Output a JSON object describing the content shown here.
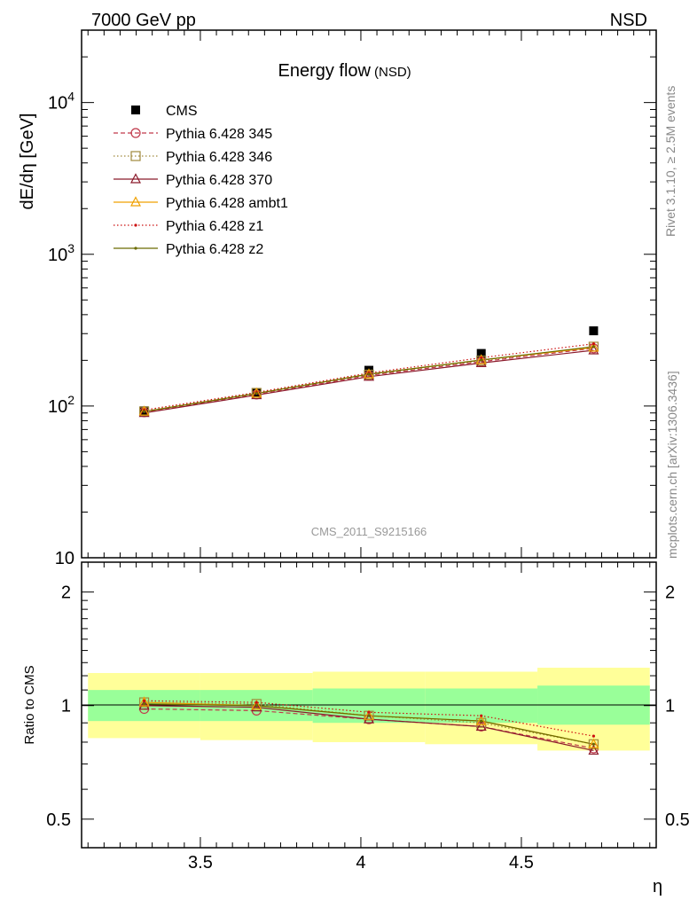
{
  "header": {
    "left": "7000 GeV pp",
    "right": "NSD"
  },
  "side_labels": {
    "rivet": "Rivet 3.1.10, ≥ 2.5M events",
    "mcplots": "mcplots.cern.ch [arXiv:1306.3436]"
  },
  "chart_data": [
    {
      "type": "scatter",
      "title": "Energy flow",
      "title_suffix": "(NSD)",
      "ylabel": "dE/dη [GeV]",
      "yscale": "log",
      "ylim": [
        10,
        30000
      ],
      "xlim": [
        3.13,
        4.92
      ],
      "y_ticks": [
        {
          "value": 10,
          "base": "10",
          "exp": ""
        },
        {
          "value": 100,
          "base": "10",
          "exp": "2"
        },
        {
          "value": 1000,
          "base": "10",
          "exp": "3"
        },
        {
          "value": 10000,
          "base": "10",
          "exp": "4"
        }
      ],
      "watermark": "CMS_2011_S9215166",
      "legend_position": "top-left",
      "x": [
        3.325,
        3.675,
        4.025,
        4.375,
        4.725
      ],
      "series": [
        {
          "name": "CMS",
          "color": "#000000",
          "marker": "filled-square",
          "line": "none",
          "values": [
            93,
            123,
            172,
            222,
            313
          ]
        },
        {
          "name": "Pythia 6.428 345",
          "color": "#c0394b",
          "marker": "open-circle",
          "line": "dashed",
          "values": [
            91,
            119,
            159,
            196,
            240
          ]
        },
        {
          "name": "Pythia 6.428 346",
          "color": "#a0893c",
          "marker": "open-square",
          "line": "dotted",
          "values": [
            92,
            122,
            161,
            199,
            246
          ]
        },
        {
          "name": "Pythia 6.428 370",
          "color": "#8b1a2b",
          "marker": "open-triangle",
          "line": "solid",
          "values": [
            90,
            118,
            156,
            192,
            233
          ]
        },
        {
          "name": "Pythia 6.428 ambt1",
          "color": "#f0a000",
          "marker": "open-triangle",
          "line": "solid",
          "values": [
            92,
            121,
            162,
            201,
            243
          ]
        },
        {
          "name": "Pythia 6.428 z1",
          "color": "#cc1010",
          "marker": "dot",
          "line": "dotted",
          "values": [
            94,
            123,
            165,
            208,
            257
          ]
        },
        {
          "name": "Pythia 6.428 z2",
          "color": "#6b6b00",
          "marker": "dot",
          "line": "solid",
          "values": [
            92,
            121,
            162,
            201,
            246
          ]
        }
      ]
    },
    {
      "type": "line",
      "ylabel": "Ratio to CMS",
      "xlabel": "η",
      "yscale": "log",
      "ylim": [
        0.42,
        2.4
      ],
      "xlim": [
        3.13,
        4.92
      ],
      "x_ticks": [
        "3.5",
        "4",
        "4.5"
      ],
      "y_ticks": [
        "0.5",
        "1",
        "2"
      ],
      "bins": [
        {
          "lo": 3.15,
          "hi": 3.5,
          "green": [
            0.91,
            1.1
          ],
          "yellow": [
            0.82,
            1.22
          ]
        },
        {
          "lo": 3.5,
          "hi": 3.85,
          "green": [
            0.91,
            1.1
          ],
          "yellow": [
            0.81,
            1.22
          ]
        },
        {
          "lo": 3.85,
          "hi": 4.2,
          "green": [
            0.9,
            1.11
          ],
          "yellow": [
            0.8,
            1.23
          ]
        },
        {
          "lo": 4.2,
          "hi": 4.55,
          "green": [
            0.9,
            1.11
          ],
          "yellow": [
            0.79,
            1.23
          ]
        },
        {
          "lo": 4.55,
          "hi": 4.9,
          "green": [
            0.89,
            1.13
          ],
          "yellow": [
            0.76,
            1.26
          ]
        }
      ],
      "x": [
        3.325,
        3.675,
        4.025,
        4.375,
        4.725
      ],
      "series": [
        {
          "name": "Pythia 6.428 345",
          "color": "#c0394b",
          "marker": "open-circle",
          "line": "dashed",
          "values": [
            0.98,
            0.97,
            0.92,
            0.88,
            0.77
          ]
        },
        {
          "name": "Pythia 6.428 346",
          "color": "#a0893c",
          "marker": "open-square",
          "line": "dotted",
          "values": [
            1.02,
            1.01,
            0.94,
            0.9,
            0.79
          ]
        },
        {
          "name": "Pythia 6.428 370",
          "color": "#8b1a2b",
          "marker": "open-triangle",
          "line": "solid",
          "values": [
            1.0,
            0.99,
            0.92,
            0.88,
            0.76
          ]
        },
        {
          "name": "Pythia 6.428 ambt1",
          "color": "#f0a000",
          "marker": "open-triangle",
          "line": "solid",
          "values": [
            1.02,
            1.0,
            0.94,
            0.91,
            0.79
          ]
        },
        {
          "name": "Pythia 6.428 z1",
          "color": "#cc1010",
          "marker": "dot",
          "line": "dotted",
          "values": [
            1.03,
            1.02,
            0.96,
            0.94,
            0.83
          ]
        },
        {
          "name": "Pythia 6.428 z2",
          "color": "#6b6b00",
          "marker": "dot",
          "line": "solid",
          "values": [
            1.01,
            1.0,
            0.94,
            0.91,
            0.79
          ]
        }
      ]
    }
  ]
}
